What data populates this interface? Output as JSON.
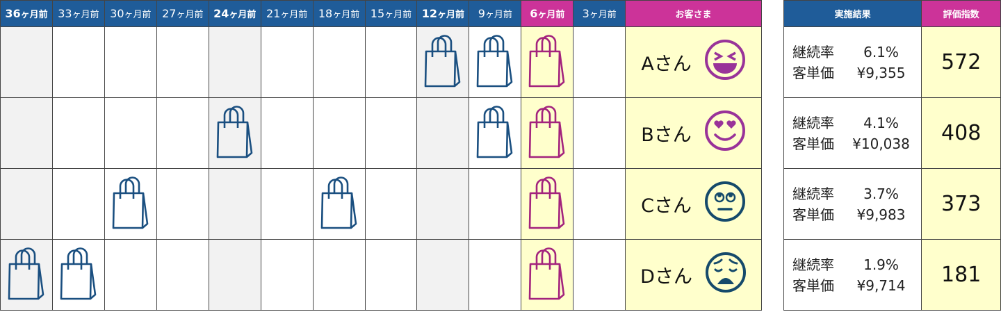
{
  "months": [
    {
      "label_num": "36",
      "label_suffix": "ヶ月前",
      "bold": true
    },
    {
      "label_num": "33",
      "label_suffix": "ヶ月前",
      "bold": false
    },
    {
      "label_num": "30",
      "label_suffix": "ヶ月前",
      "bold": false
    },
    {
      "label_num": "27",
      "label_suffix": "ヶ月前",
      "bold": false
    },
    {
      "label_num": "24",
      "label_suffix": "ヶ月前",
      "bold": true
    },
    {
      "label_num": "21",
      "label_suffix": "ヶ月前",
      "bold": false
    },
    {
      "label_num": "18",
      "label_suffix": "ヶ月前",
      "bold": false
    },
    {
      "label_num": "15",
      "label_suffix": "ヶ月前",
      "bold": false
    },
    {
      "label_num": "12",
      "label_suffix": "ヶ月前",
      "bold": true
    },
    {
      "label_num": "9",
      "label_suffix": "ヶ月前",
      "bold": false
    },
    {
      "label_num": "6",
      "label_suffix": "ヶ月前",
      "bold": true,
      "highlight": true
    },
    {
      "label_num": "3",
      "label_suffix": "ヶ月前",
      "bold": false
    }
  ],
  "headers": {
    "customer": "お客さま",
    "result": "実施結果",
    "score": "評価指数"
  },
  "labels": {
    "retention": "継続率",
    "unit_price": "客単価"
  },
  "colors": {
    "header_blue": "#1f5c99",
    "header_pink": "#cc3399",
    "bag_blue": "#1a4f80",
    "bag_pink": "#a3237d",
    "face_purple": "#993399",
    "face_navy": "#154a6b",
    "highlight_yellow": "#ffffcc",
    "gray_column": "#f2f2f2"
  },
  "customers": [
    {
      "name": "Aさん",
      "face": "laughing-face-icon",
      "face_color": "#993399",
      "purchases": [
        8,
        9,
        10
      ],
      "retention": "6.1%",
      "unit_price": "¥9,355",
      "score": "572"
    },
    {
      "name": "Bさん",
      "face": "heart-eyes-face-icon",
      "face_color": "#993399",
      "purchases": [
        4,
        9,
        10
      ],
      "retention": "4.1%",
      "unit_price": "¥10,038",
      "score": "408"
    },
    {
      "name": "Cさん",
      "face": "rolling-eyes-face-icon",
      "face_color": "#154a6b",
      "purchases": [
        2,
        6,
        10
      ],
      "retention": "3.7%",
      "unit_price": "¥9,983",
      "score": "373"
    },
    {
      "name": "Dさん",
      "face": "anxious-face-icon",
      "face_color": "#154a6b",
      "purchases": [
        0,
        1,
        10
      ],
      "retention": "1.9%",
      "unit_price": "¥9,714",
      "score": "181"
    }
  ]
}
